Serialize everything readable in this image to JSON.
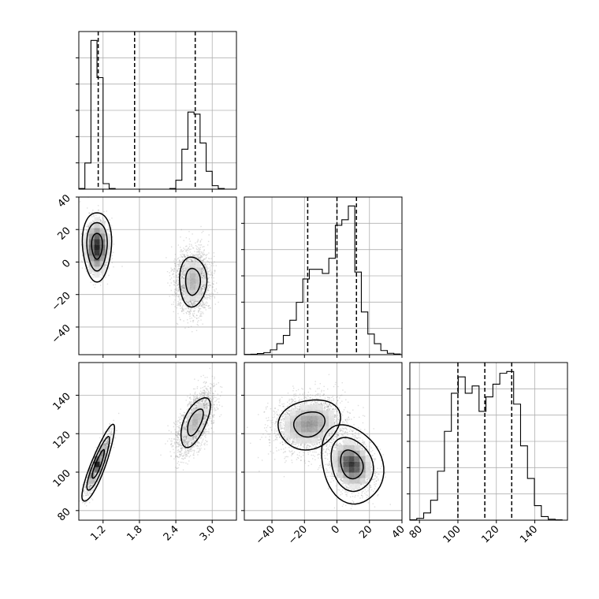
{
  "chart_data": {
    "type": "corner",
    "style": {
      "grid": true,
      "line_color": "#000000",
      "scatter_color": "#888888",
      "grid_color": "#b0b0b0"
    },
    "parameters": [
      {
        "id": "p0",
        "range": [
          0.8,
          3.4
        ],
        "ticks": [
          1.2,
          1.8,
          2.4,
          3.0
        ],
        "tick_labels": [
          "1.2",
          "1.8",
          "2.4",
          "3.0"
        ],
        "quantiles": [
          1.12,
          1.72,
          2.72
        ]
      },
      {
        "id": "p1",
        "range": [
          -57,
          40
        ],
        "ticks": [
          -40,
          -20,
          0,
          20,
          40
        ],
        "tick_labels": [
          "−40",
          "−20",
          "0",
          "20",
          "40"
        ],
        "quantiles": [
          -18,
          0,
          12
        ]
      },
      {
        "id": "p2",
        "range": [
          75,
          157
        ],
        "ticks": [
          80,
          100,
          120,
          140
        ],
        "tick_labels": [
          "80",
          "100",
          "120",
          "140"
        ],
        "quantiles": [
          100,
          114,
          128
        ]
      }
    ],
    "histograms": [
      {
        "param": "p0",
        "edges": [
          0.8,
          0.9,
          1.0,
          1.1,
          1.2,
          1.3,
          1.4,
          1.5,
          1.6,
          1.7,
          1.8,
          1.9,
          2.0,
          2.1,
          2.2,
          2.3,
          2.4,
          2.5,
          2.6,
          2.7,
          2.8,
          2.9,
          3.0,
          3.1,
          3.2,
          3.3,
          3.4
        ],
        "counts": [
          5,
          190,
          1080,
          810,
          40,
          5,
          0,
          0,
          0,
          0,
          0,
          0,
          0,
          0,
          0,
          5,
          65,
          290,
          560,
          545,
          335,
          130,
          25,
          5,
          0,
          0
        ]
      },
      {
        "param": "p1",
        "edges": [
          -57,
          -53,
          -49,
          -45,
          -41,
          -37,
          -33,
          -29,
          -25,
          -21,
          -17,
          -13,
          -9,
          -5,
          -1,
          3,
          7,
          11,
          15,
          19,
          23,
          27,
          31,
          35,
          39
        ],
        "counts": [
          2,
          3,
          8,
          15,
          35,
          80,
          140,
          250,
          380,
          550,
          620,
          620,
          590,
          700,
          940,
          980,
          1080,
          600,
          310,
          150,
          80,
          30,
          10,
          5
        ]
      },
      {
        "param": "p2",
        "edges": [
          75,
          78.6,
          82.2,
          85.8,
          89.4,
          93.0,
          96.6,
          100.2,
          103.8,
          107.4,
          111.0,
          114.6,
          118.2,
          121.8,
          125.4,
          129.0,
          132.6,
          136.2,
          139.8,
          143.4,
          147.0,
          150.6,
          154.2
        ],
        "counts": [
          2,
          10,
          40,
          110,
          270,
          490,
          700,
          790,
          700,
          740,
          600,
          680,
          750,
          810,
          820,
          640,
          410,
          230,
          80,
          20,
          5,
          2
        ]
      }
    ],
    "pairs": [
      {
        "x": "p0",
        "y": "p1",
        "clusters": [
          {
            "cx": 1.1,
            "cy": 10,
            "sx": 0.09,
            "sy": 8,
            "rho": 0,
            "n": 1600,
            "seed": 11,
            "levels": [
              [
                1.6,
                1
              ],
              [
                3.0,
                1.1
              ],
              [
                4.3,
                1.2
              ]
            ]
          },
          {
            "cx": 2.68,
            "cy": -12,
            "sx": 0.14,
            "sy": 9.5,
            "rho": 0,
            "n": 2300,
            "seed": 23,
            "levels": [
              [
                1.4,
                1
              ],
              [
                2.6,
                1.05
              ]
            ]
          }
        ],
        "hot": [
          {
            "cx": 1.1,
            "cy": 9,
            "sx": 0.12,
            "sy": 10,
            "rho": 0,
            "peak": 0.95
          },
          {
            "cx": 2.68,
            "cy": -12,
            "sx": 0.15,
            "sy": 10,
            "rho": 0,
            "peak": 0.3
          }
        ]
      },
      {
        "x": "p0",
        "y": "p2",
        "clusters": [
          {
            "cx": 1.12,
            "cy": 104,
            "sx": 0.1,
            "sy": 7.5,
            "rho": 0.88,
            "n": 1600,
            "seed": 37,
            "levels": [
              [
                1.6,
                1
              ],
              [
                3.0,
                1.05
              ],
              [
                4.3,
                1.15
              ]
            ]
          },
          {
            "cx": 2.72,
            "cy": 126,
            "sx": 0.15,
            "sy": 8,
            "rho": 0.6,
            "n": 2300,
            "seed": 41,
            "levels": [
              [
                1.4,
                1
              ],
              [
                2.6,
                1.05
              ]
            ]
          }
        ],
        "hot": [
          {
            "cx": 1.1,
            "cy": 104,
            "sx": 0.1,
            "sy": 7,
            "rho": 0.85,
            "peak": 0.95
          },
          {
            "cx": 2.72,
            "cy": 126,
            "sx": 0.15,
            "sy": 8,
            "rho": 0.6,
            "peak": 0.3
          }
        ]
      },
      {
        "x": "p1",
        "y": "p2",
        "clusters": [
          {
            "cx": -17,
            "cy": 125,
            "sx": 11,
            "sy": 7.5,
            "rho": 0.15,
            "n": 2300,
            "seed": 53,
            "levels": [
              [
                1.4,
                1
              ],
              [
                2.8,
                1.05
              ]
            ]
          },
          {
            "cx": 9,
            "cy": 104,
            "sx": 7,
            "sy": 7.5,
            "rho": -0.2,
            "n": 1600,
            "seed": 67,
            "levels": [
              [
                1.6,
                1
              ],
              [
                3.0,
                1.05
              ],
              [
                4.4,
                1.15
              ]
            ]
          }
        ],
        "hot": [
          {
            "cx": -17,
            "cy": 125,
            "sx": 11,
            "sy": 7,
            "rho": 0.15,
            "peak": 0.45
          },
          {
            "cx": 9,
            "cy": 104,
            "sx": 7,
            "sy": 7,
            "rho": -0.2,
            "peak": 0.9
          }
        ]
      }
    ]
  }
}
